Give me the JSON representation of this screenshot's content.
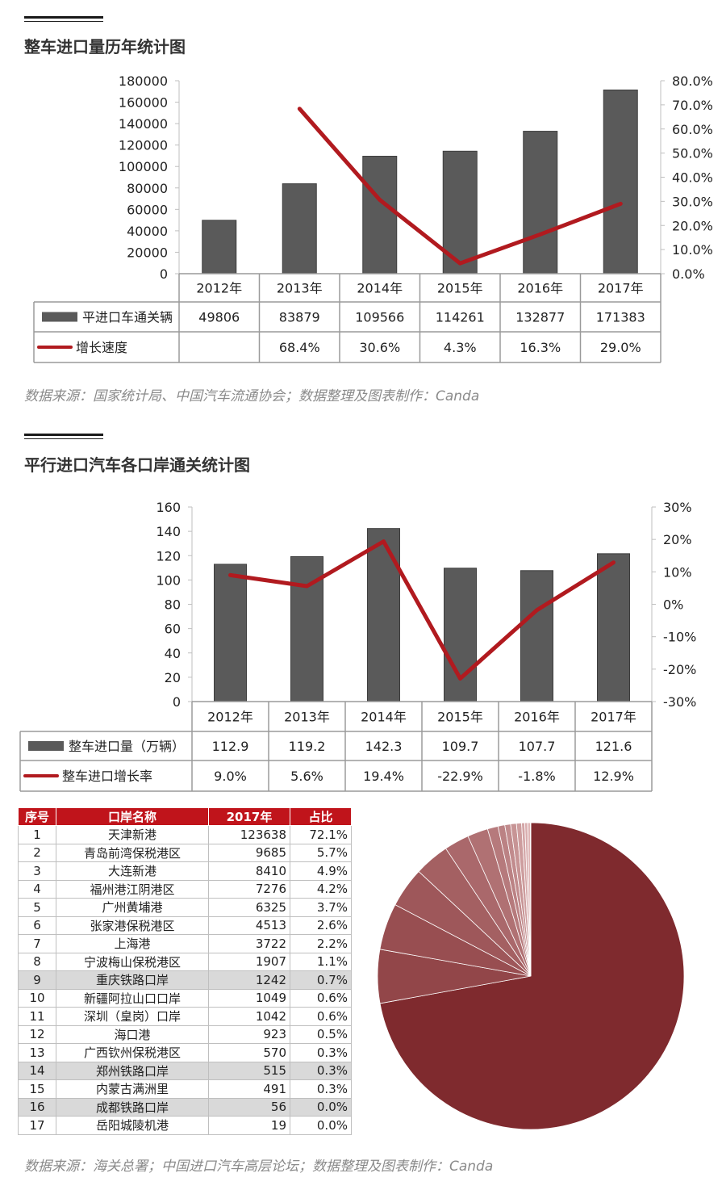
{
  "section1": {
    "title": "整车进口量历年统计图",
    "source": "数据来源：国家统计局、中国汽车流通协会；数据整理及图表制作：Canda"
  },
  "section2": {
    "title": "平行进口汽车各口岸通关统计图",
    "source": "数据来源：海关总署；中国进口汽车高层论坛；数据整理及图表制作：Canda"
  },
  "colors": {
    "bar": "#5a5a5a",
    "line": "#b11a1f",
    "header_red": "#c0141b",
    "pie_main": "#7f2a2e"
  },
  "chart_data": [
    {
      "type": "bar",
      "title": "整车进口量历年统计图",
      "categories": [
        "2012年",
        "2013年",
        "2014年",
        "2015年",
        "2016年",
        "2017年"
      ],
      "series": [
        {
          "name": "平进口车通关辆",
          "type": "bar",
          "axis": "left",
          "values": [
            49806,
            83879,
            109566,
            114261,
            132877,
            171383
          ],
          "labels": [
            "49806",
            "83879",
            "109566",
            "114261",
            "132877",
            "171383"
          ]
        },
        {
          "name": "增长速度",
          "type": "line",
          "axis": "right",
          "values": [
            null,
            68.4,
            30.6,
            4.3,
            16.3,
            29.0
          ],
          "labels": [
            "",
            "68.4%",
            "30.6%",
            "4.3%",
            "16.3%",
            "29.0%"
          ]
        }
      ],
      "ylim": [
        0,
        180000
      ],
      "yticks": [
        "180000",
        "160000",
        "140000",
        "120000",
        "100000",
        "80000",
        "60000",
        "40000",
        "20000",
        "0"
      ],
      "y2lim": [
        0,
        80
      ],
      "y2ticks": [
        "80.0%",
        "70.0%",
        "60.0%",
        "50.0%",
        "40.0%",
        "30.0%",
        "20.0%",
        "10.0%",
        "0.0%"
      ],
      "legend": "data-table"
    },
    {
      "type": "bar",
      "title": "平行进口汽车各口岸通关统计图",
      "categories": [
        "2012年",
        "2013年",
        "2014年",
        "2015年",
        "2016年",
        "2017年"
      ],
      "series": [
        {
          "name": "整车进口量（万辆）",
          "type": "bar",
          "axis": "left",
          "values": [
            112.9,
            119.2,
            142.3,
            109.7,
            107.7,
            121.6
          ],
          "labels": [
            "112.9",
            "119.2",
            "142.3",
            "109.7",
            "107.7",
            "121.6"
          ]
        },
        {
          "name": "整车进口增长率",
          "type": "line",
          "axis": "right",
          "values": [
            9.0,
            5.6,
            19.4,
            -22.9,
            -1.8,
            12.9
          ],
          "labels": [
            "9.0%",
            "5.6%",
            "19.4%",
            "-22.9%",
            "-1.8%",
            "12.9%"
          ]
        }
      ],
      "ylim": [
        0,
        160
      ],
      "yticks": [
        "160",
        "140",
        "120",
        "100",
        "80",
        "60",
        "40",
        "20",
        "0"
      ],
      "y2lim": [
        -30,
        30
      ],
      "y2ticks": [
        "30%",
        "20%",
        "10%",
        "0%",
        "-10%",
        "-20%",
        "-30%"
      ],
      "legend": "data-table"
    },
    {
      "type": "table",
      "columns": [
        "序号",
        "口岸名称",
        "2017年",
        "占比"
      ],
      "rows": [
        [
          "1",
          "天津新港",
          "123638",
          "72.1%"
        ],
        [
          "2",
          "青岛前湾保税港区",
          "9685",
          "5.7%"
        ],
        [
          "3",
          "大连新港",
          "8410",
          "4.9%"
        ],
        [
          "4",
          "福州港江阴港区",
          "7276",
          "4.2%"
        ],
        [
          "5",
          "广州黄埔港",
          "6325",
          "3.7%"
        ],
        [
          "6",
          "张家港保税港区",
          "4513",
          "2.6%"
        ],
        [
          "7",
          "上海港",
          "3722",
          "2.2%"
        ],
        [
          "8",
          "宁波梅山保税港区",
          "1907",
          "1.1%"
        ],
        [
          "9",
          "重庆铁路口岸",
          "1242",
          "0.7%"
        ],
        [
          "10",
          "新疆阿拉山口口岸",
          "1049",
          "0.6%"
        ],
        [
          "11",
          "深圳（皇岗）口岸",
          "1042",
          "0.6%"
        ],
        [
          "12",
          "海口港",
          "923",
          "0.5%"
        ],
        [
          "13",
          "广西钦州保税港区",
          "570",
          "0.3%"
        ],
        [
          "14",
          "郑州铁路口岸",
          "515",
          "0.3%"
        ],
        [
          "15",
          "内蒙古满洲里",
          "491",
          "0.3%"
        ],
        [
          "16",
          "成都铁路口岸",
          "56",
          "0.0%"
        ],
        [
          "17",
          "岳阳城陵机港",
          "19",
          "0.0%"
        ]
      ],
      "highlighted_rows": [
        9,
        14,
        16
      ]
    },
    {
      "type": "pie",
      "values": [
        123638,
        9685,
        8410,
        7276,
        6325,
        4513,
        3722,
        1907,
        1242,
        1049,
        1042,
        923,
        570,
        515,
        491,
        56,
        19
      ]
    }
  ]
}
